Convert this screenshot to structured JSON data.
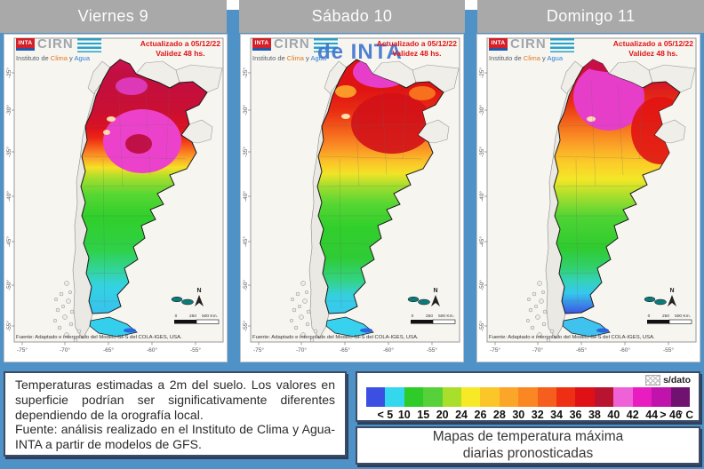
{
  "page": {
    "background": "#4e92c8",
    "tabbar_color": "#a9a9a9"
  },
  "tabs": {
    "items": [
      {
        "label": "Viernes 9"
      },
      {
        "label": "Sábado 10"
      },
      {
        "label": "Domingo 11"
      }
    ]
  },
  "map_common": {
    "logo": {
      "inta": "INTA",
      "cirn": "CIRN",
      "institute_prefix": "Instituto de ",
      "clima": "Clima",
      "conj": " y ",
      "agua": "Agua"
    },
    "updated": "Actualizado a 05/12/22",
    "validity": "Validez 48 hs.",
    "source": "Fuente: Adaptado e interpolado del Modelo GFS del COLA-IGES, USA.",
    "north": "N",
    "scale_ticks": [
      "0",
      "250",
      "500 Km."
    ],
    "lat_labels": [
      "-25°",
      "-30°",
      "-35°",
      "-40°",
      "-45°",
      "-50°",
      "-55°"
    ],
    "lon_labels": [
      "-75°",
      "-70°",
      "-65°",
      "-60°",
      "-55°"
    ]
  },
  "watermark": {
    "text": "de INTA"
  },
  "maps": [
    {
      "day": "Viernes 9",
      "tdf": "#35cfee",
      "bands": [
        [
          0,
          "#cb1050"
        ],
        [
          0.06,
          "#c10f42"
        ],
        [
          0.2,
          "#c90f33"
        ],
        [
          0.27,
          "#dc1120"
        ],
        [
          0.31,
          "#ec2914"
        ],
        [
          0.345,
          "#f65f1c"
        ],
        [
          0.385,
          "#fb9f27"
        ],
        [
          0.425,
          "#f6e026"
        ],
        [
          0.465,
          "#a8de2c"
        ],
        [
          0.53,
          "#58d733"
        ],
        [
          0.62,
          "#30cf2b"
        ],
        [
          0.75,
          "#2fd148"
        ],
        [
          0.83,
          "#32d49c"
        ],
        [
          0.89,
          "#34d2e2"
        ],
        [
          1,
          "#36c2ee"
        ]
      ],
      "spots": [
        [
          155,
          120,
          44,
          36,
          "#ec42cb",
          1
        ],
        [
          151,
          123,
          15,
          11,
          "#c01048",
          1
        ],
        [
          143,
          58,
          18,
          10,
          "#dd38b8",
          1
        ],
        [
          120,
          95,
          5,
          3,
          "#ffe9b0",
          0.95
        ],
        [
          115,
          110,
          4,
          3,
          "#ffe9b0",
          0.9
        ]
      ]
    },
    {
      "day": "Sábado 10",
      "tdf": "#38d2ee",
      "bands": [
        [
          0,
          "#df1214"
        ],
        [
          0.12,
          "#e01313"
        ],
        [
          0.2,
          "#e92c12"
        ],
        [
          0.28,
          "#f4611c"
        ],
        [
          0.35,
          "#fb9426"
        ],
        [
          0.41,
          "#fbc828"
        ],
        [
          0.45,
          "#f1e427"
        ],
        [
          0.5,
          "#9fdd2e"
        ],
        [
          0.57,
          "#55d633"
        ],
        [
          0.66,
          "#31cf2b"
        ],
        [
          0.78,
          "#2fcb35"
        ],
        [
          0.87,
          "#33d385"
        ],
        [
          0.93,
          "#35cfe2"
        ],
        [
          1,
          "#36c8ee"
        ]
      ],
      "spots": [
        [
          158,
          42,
          32,
          18,
          "#e73ec9",
          1
        ],
        [
          170,
          100,
          46,
          34,
          "#d21118",
          0.9
        ],
        [
          118,
          64,
          12,
          7,
          "#fb9a26",
          1
        ],
        [
          204,
          66,
          15,
          8,
          "#f6701d",
          1
        ],
        [
          118,
          92,
          5,
          3,
          "#ffe9b0",
          0.95
        ]
      ]
    },
    {
      "day": "Domingo 11",
      "tdf": "#3fc2ee",
      "bands": [
        [
          0,
          "#c80f45"
        ],
        [
          0.08,
          "#d41126"
        ],
        [
          0.17,
          "#e72f12"
        ],
        [
          0.25,
          "#f4671c"
        ],
        [
          0.33,
          "#fb9d27"
        ],
        [
          0.4,
          "#fbc928"
        ],
        [
          0.47,
          "#f4e727"
        ],
        [
          0.54,
          "#a4de2d"
        ],
        [
          0.62,
          "#4ed434"
        ],
        [
          0.74,
          "#2fcb2e"
        ],
        [
          0.82,
          "#31d06e"
        ],
        [
          0.87,
          "#33d2b8"
        ],
        [
          0.92,
          "#36c8ee"
        ],
        [
          1,
          "#3b54e4"
        ]
      ],
      "spots": [
        [
          148,
          70,
          40,
          38,
          "#e73ec9",
          1
        ],
        [
          166,
          33,
          48,
          10,
          "#c80f45",
          1
        ],
        [
          206,
          108,
          33,
          38,
          "#e11313",
          0.9
        ],
        [
          128,
          95,
          5,
          3,
          "#ffe9b0",
          0.95
        ]
      ]
    }
  ],
  "legend": {
    "no_data_label": "s/dato",
    "unit": "° C",
    "ticks": [
      "< 5",
      "10",
      "15",
      "20",
      "24",
      "26",
      "28",
      "30",
      "32",
      "34",
      "36",
      "38",
      "40",
      "42",
      "44",
      "> 46"
    ],
    "colors": [
      "#3b50e2",
      "#33d7ee",
      "#2ecb29",
      "#56d13a",
      "#a9de2b",
      "#f8e926",
      "#fbc728",
      "#fba629",
      "#fb8724",
      "#f65e1d",
      "#ee2f13",
      "#df1117",
      "#b81330",
      "#ef62d7",
      "#e81cc0",
      "#c013ab",
      "#70126f"
    ]
  },
  "notes": {
    "body": "Temperaturas estimadas a 2m del suelo. Los valores en superficie podrían ser significativamente diferentes dependiendo de la orografía local.",
    "source": "Fuente: análisis realizado en el Instituto de Clima y Agua-INTA a partir de modelos de GFS."
  },
  "caption": {
    "line1": "Mapas de temperatura máxima",
    "line2": "diarias pronosticadas"
  }
}
